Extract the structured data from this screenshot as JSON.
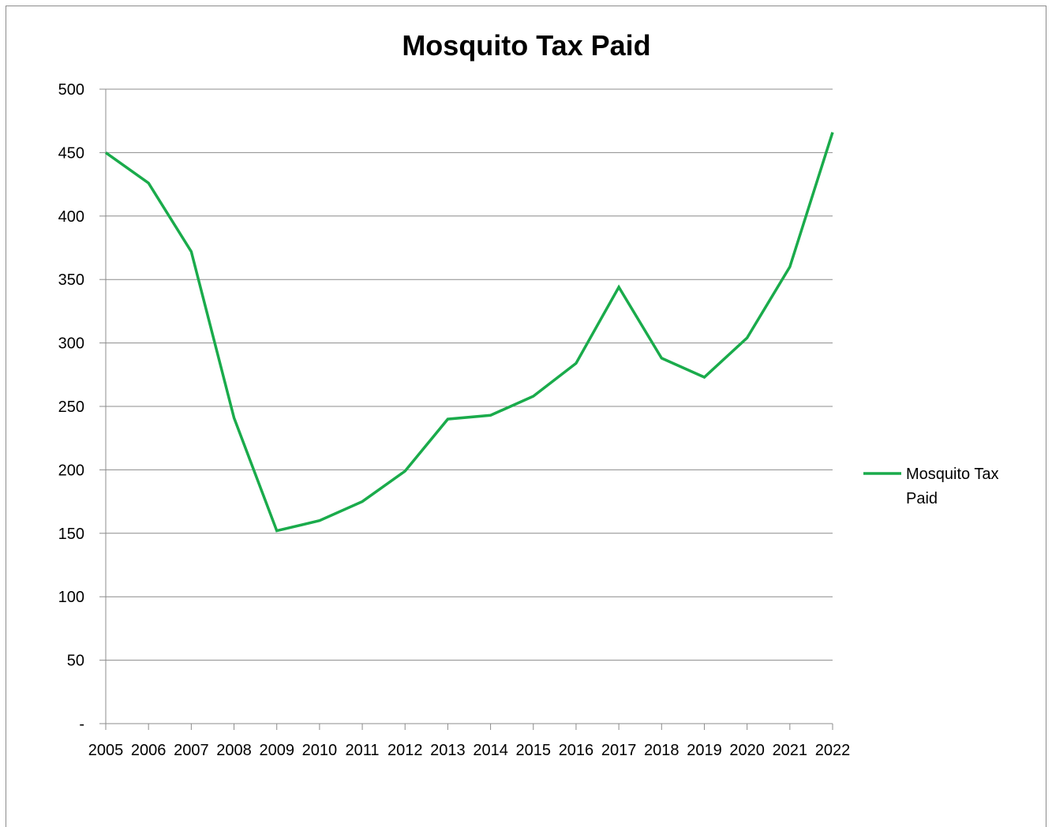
{
  "chart_data": {
    "type": "line",
    "title": "Mosquito Tax Paid",
    "xlabel": "",
    "ylabel": "",
    "categories": [
      "2005",
      "2006",
      "2007",
      "2008",
      "2009",
      "2010",
      "2011",
      "2012",
      "2013",
      "2014",
      "2015",
      "2016",
      "2017",
      "2018",
      "2019",
      "2020",
      "2021",
      "2022"
    ],
    "series": [
      {
        "name": "Mosquito Tax Paid",
        "color": "#1aab4b",
        "values": [
          450,
          426,
          372,
          241,
          152,
          160,
          175,
          199,
          240,
          243,
          258,
          284,
          344,
          288,
          273,
          304,
          360,
          466
        ]
      }
    ],
    "ylim": [
      0,
      500
    ],
    "y_ticks": [
      0,
      50,
      100,
      150,
      200,
      250,
      300,
      350,
      400,
      450,
      500
    ],
    "y_tick_labels": [
      "-",
      "50",
      "100",
      "150",
      "200",
      "250",
      "300",
      "350",
      "400",
      "450",
      "500"
    ],
    "grid": "horizontal",
    "legend_position": "right",
    "legend_label_lines": [
      "Mosquito Tax",
      "Paid"
    ]
  }
}
